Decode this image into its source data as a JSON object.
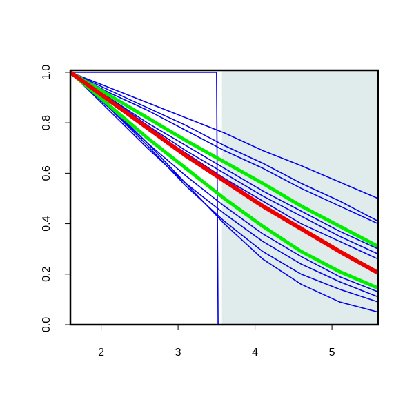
{
  "chart_data": {
    "type": "line",
    "x": [
      1.6,
      2.1,
      2.6,
      3.1,
      3.6,
      4.1,
      4.6,
      5.1,
      5.6
    ],
    "xlim": [
      1.6,
      5.6
    ],
    "ylim": [
      0,
      1.008
    ],
    "xticks": [
      2,
      3,
      4,
      5
    ],
    "yticks": [
      {
        "value": 0,
        "label": "0.0"
      },
      {
        "value": 0.2,
        "label": "0.2"
      },
      {
        "value": 0.4,
        "label": "0.4"
      },
      {
        "value": 0.6,
        "label": "0.6"
      },
      {
        "value": 0.8,
        "label": "0.8"
      },
      {
        "value": 1,
        "label": "1.0"
      }
    ],
    "shaded_xrange": [
      3.57,
      5.6
    ],
    "shade_color": "#e0ecec",
    "series": [
      {
        "color": "#0000ee",
        "line_width": 1.6,
        "x": [
          1.6,
          3.5,
          3.52,
          5.6
        ],
        "values": [
          1,
          1,
          0,
          0
        ]
      },
      {
        "color": "#0000ee",
        "line_width": 1.6,
        "values": [
          1,
          0.94,
          0.88,
          0.82,
          0.76,
          0.69,
          0.63,
          0.565,
          0.5
        ]
      },
      {
        "color": "#0000ee",
        "line_width": 1.6,
        "values": [
          1,
          0.93,
          0.86,
          0.79,
          0.71,
          0.64,
          0.56,
          0.49,
          0.41
        ]
      },
      {
        "color": "#0000ee",
        "line_width": 1.6,
        "values": [
          1,
          0.92,
          0.85,
          0.77,
          0.69,
          0.62,
          0.54,
          0.47,
          0.4
        ]
      },
      {
        "color": "#0000ee",
        "line_width": 1.6,
        "values": [
          1,
          0.9,
          0.8,
          0.71,
          0.62,
          0.53,
          0.45,
          0.37,
          0.3
        ]
      },
      {
        "color": "#0000ee",
        "line_width": 1.6,
        "values": [
          1,
          0.9,
          0.79,
          0.69,
          0.6,
          0.51,
          0.43,
          0.35,
          0.28
        ]
      },
      {
        "color": "#0000ee",
        "line_width": 1.6,
        "values": [
          1,
          0.89,
          0.78,
          0.68,
          0.58,
          0.49,
          0.4,
          0.33,
          0.26
        ]
      },
      {
        "color": "#0000ee",
        "line_width": 1.6,
        "values": [
          1,
          0.86,
          0.72,
          0.59,
          0.47,
          0.36,
          0.27,
          0.19,
          0.13
        ]
      },
      {
        "color": "#0000ee",
        "line_width": 1.6,
        "values": [
          1,
          0.85,
          0.7,
          0.56,
          0.44,
          0.33,
          0.24,
          0.17,
          0.11
        ]
      },
      {
        "color": "#0000ee",
        "line_width": 1.6,
        "values": [
          1,
          0.86,
          0.71,
          0.55,
          0.41,
          0.29,
          0.2,
          0.14,
          0.09
        ]
      },
      {
        "color": "#0000ee",
        "line_width": 1.6,
        "values": [
          1,
          0.87,
          0.72,
          0.56,
          0.4,
          0.26,
          0.16,
          0.09,
          0.05
        ]
      },
      {
        "color": "#00ee00",
        "line_width": 5,
        "values": [
          1,
          0.91,
          0.82,
          0.73,
          0.645,
          0.56,
          0.47,
          0.39,
          0.31
        ]
      },
      {
        "color": "#00ee00",
        "line_width": 5,
        "values": [
          1,
          0.87,
          0.74,
          0.62,
          0.5,
          0.39,
          0.29,
          0.21,
          0.145
        ]
      },
      {
        "color": "#ee0000",
        "line_width": 6,
        "values": [
          1,
          0.89,
          0.78,
          0.67,
          0.57,
          0.47,
          0.38,
          0.29,
          0.205
        ]
      }
    ]
  }
}
